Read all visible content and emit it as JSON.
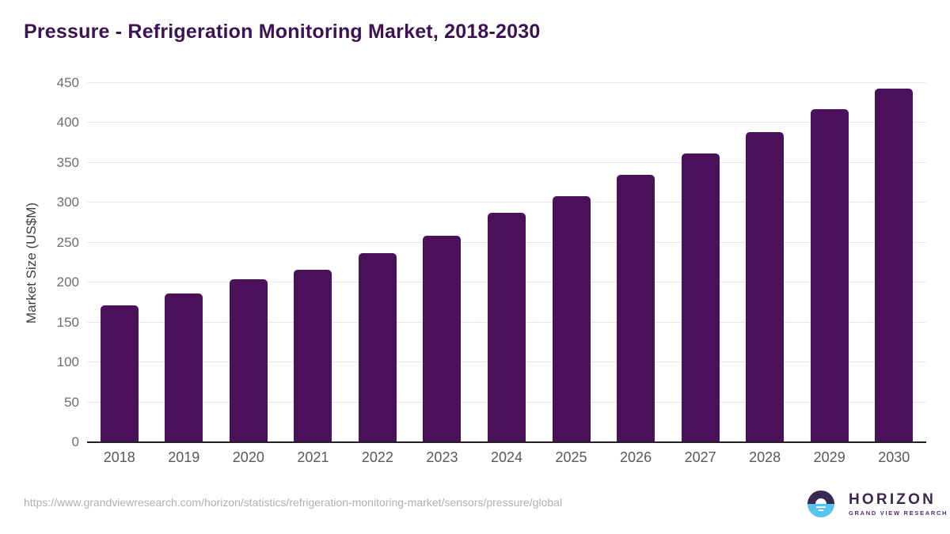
{
  "header": {
    "title": "Pressure - Refrigeration Monitoring Market, 2018-2030",
    "title_color": "#3D1253"
  },
  "chart_data": {
    "type": "bar",
    "title": "Pressure - Refrigeration Monitoring Market, 2018-2030",
    "categories": [
      "2018",
      "2019",
      "2020",
      "2021",
      "2022",
      "2023",
      "2024",
      "2025",
      "2026",
      "2027",
      "2028",
      "2029",
      "2030"
    ],
    "values": [
      171,
      186,
      204,
      216,
      237,
      259,
      287,
      308,
      335,
      362,
      389,
      417,
      443
    ],
    "xlabel": "",
    "ylabel": "Market Size (US$M)",
    "ylim": [
      0,
      450
    ],
    "ytick_step": 50,
    "grid": "horizontal",
    "legend": "none",
    "bar_color": "#4A115A",
    "gridline_color": "#E8E8E8",
    "axis_line_color": "#212121",
    "tick_label_color": "#6E6E6E",
    "x_label_color": "#58595B"
  },
  "footer": {
    "source_url": "https://www.grandviewresearch.com/horizon/statistics/refrigeration-monitoring-market/sensors/pressure/global",
    "logo": {
      "brand": "HORIZON",
      "subbrand": "GRAND VIEW RESEARCH",
      "icon": "horizon-sunset-icon",
      "brand_color": "#39284F",
      "icon_top_color": "#39284F",
      "icon_bottom_color": "#58C5F0"
    }
  }
}
